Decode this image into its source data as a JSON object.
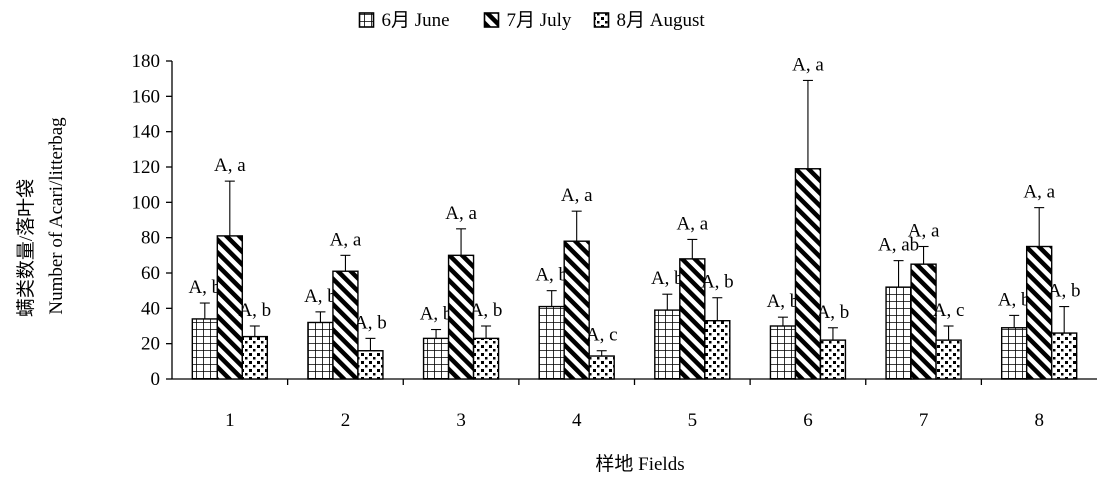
{
  "chart_data": {
    "type": "bar",
    "categories": [
      "1",
      "2",
      "3",
      "4",
      "5",
      "6",
      "7",
      "8"
    ],
    "series": [
      {
        "name": "6月 June",
        "pattern": "grid",
        "values": [
          34,
          32,
          23,
          41,
          39,
          30,
          52,
          29
        ],
        "errors": [
          9,
          6,
          5,
          9,
          9,
          5,
          15,
          7
        ],
        "labels": [
          "A, b",
          "A, b",
          "A, b",
          "A, b",
          "A, b",
          "A, b",
          "A, ab",
          "A, b"
        ]
      },
      {
        "name": "7月 July",
        "pattern": "diagonal",
        "values": [
          81,
          61,
          70,
          78,
          68,
          119,
          65,
          75
        ],
        "errors": [
          31,
          9,
          15,
          17,
          11,
          50,
          10,
          22
        ],
        "labels": [
          "A, a",
          "A, a",
          "A, a",
          "A, a",
          "A, a",
          "A, a",
          "A, a",
          "A, a"
        ]
      },
      {
        "name": "8月 August",
        "pattern": "dots",
        "values": [
          24,
          16,
          23,
          13,
          33,
          22,
          22,
          26
        ],
        "errors": [
          6,
          7,
          7,
          3,
          13,
          7,
          8,
          15
        ],
        "labels": [
          "A, b",
          "A, b",
          "A, b",
          "A, c",
          "A, b",
          "A, b",
          "A, c",
          "A, b"
        ]
      }
    ],
    "xlabel": "样地 Fields",
    "ylabel_cn": "螨类数量/落叶袋",
    "ylabel_en": "Number of Acari/litterbag",
    "ylim": [
      0,
      180
    ],
    "yticks": [
      0,
      20,
      40,
      60,
      80,
      100,
      120,
      140,
      160,
      180
    ],
    "legend_position": "top-center",
    "grid": false,
    "colors": {
      "bar_stroke": "#000000",
      "fill": "#000000",
      "background": "#ffffff"
    }
  }
}
